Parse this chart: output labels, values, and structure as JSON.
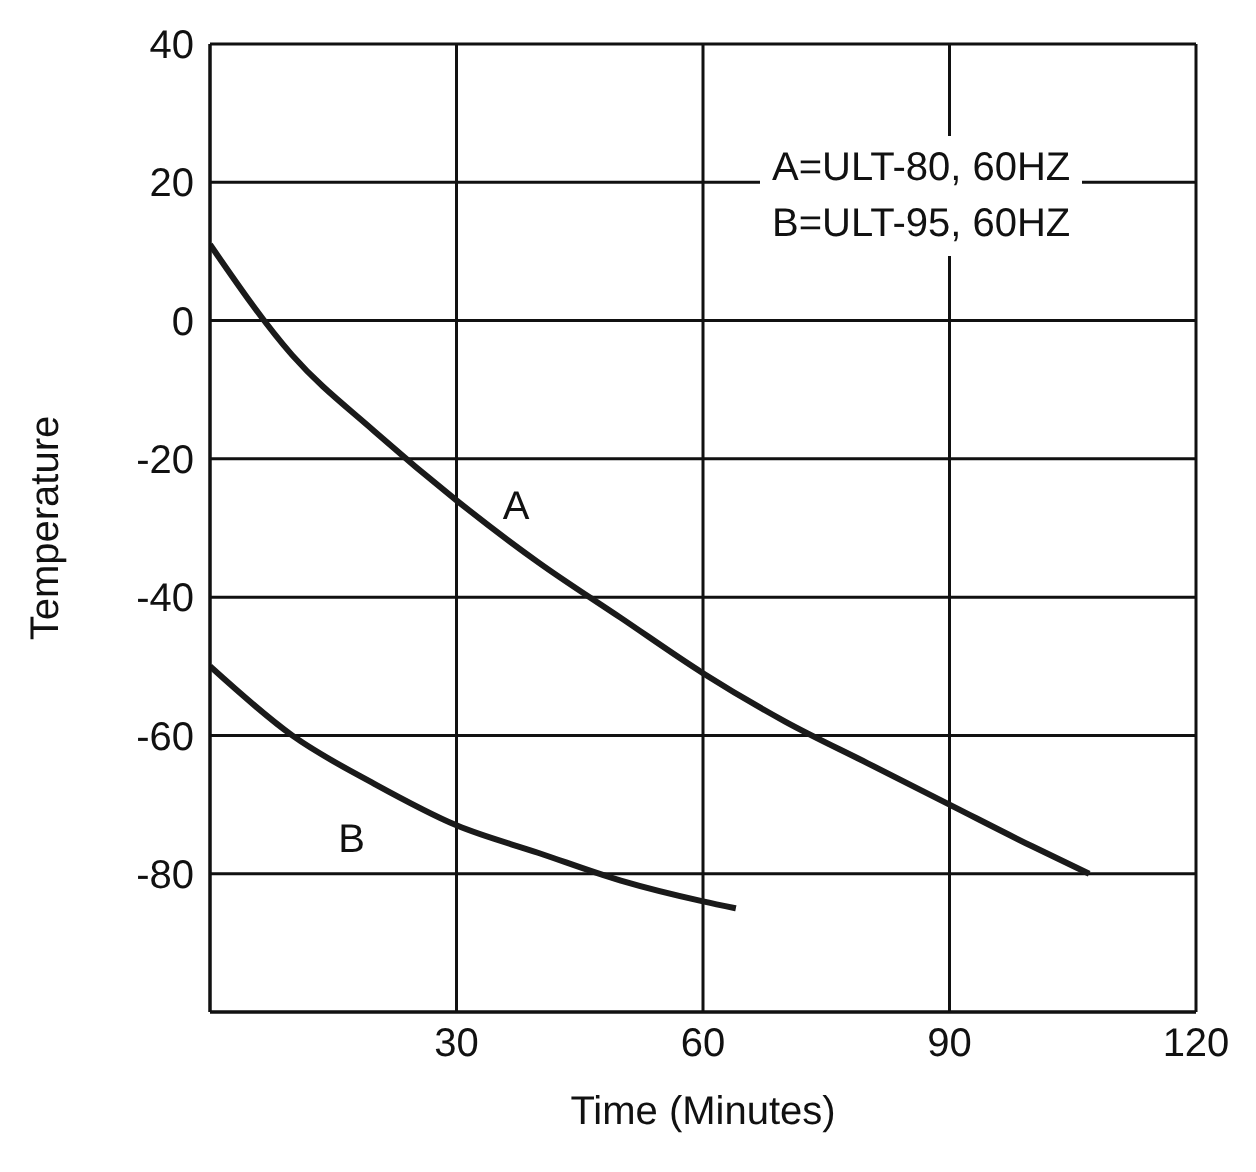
{
  "chart_data": {
    "type": "line",
    "xlabel": "Time (Minutes)",
    "ylabel": "Temperature",
    "xlim": [
      0,
      120
    ],
    "xticks": [
      30,
      60,
      90,
      120
    ],
    "ylim": [
      -100,
      40
    ],
    "yticks": [
      -80,
      -60,
      -40,
      -20,
      0,
      20,
      40
    ],
    "grid": true,
    "marker": "none",
    "line_style": "solid",
    "annotations": [
      "A=ULT-80, 60HZ",
      "B=ULT-95, 60HZ"
    ],
    "series": [
      {
        "name": "A",
        "color": "#1a1a1a",
        "x": [
          0,
          10,
          20,
          30,
          40,
          50,
          60,
          70,
          80,
          90,
          100,
          107
        ],
        "values": [
          11,
          -5,
          -16,
          -26,
          -35,
          -43,
          -51,
          -58,
          -64,
          -70,
          -76,
          -80
        ]
      },
      {
        "name": "B",
        "color": "#1a1a1a",
        "x": [
          0,
          10,
          20,
          30,
          40,
          50,
          60,
          64
        ],
        "values": [
          -50,
          -60,
          -67,
          -73,
          -77,
          -81,
          -84,
          -85
        ]
      }
    ]
  }
}
